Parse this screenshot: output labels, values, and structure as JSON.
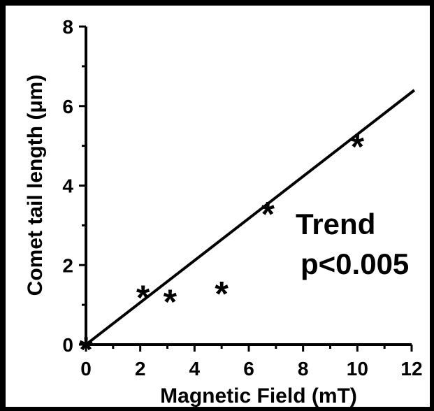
{
  "chart_data": {
    "type": "scatter",
    "title": "",
    "xlabel": "Magnetic Field (mT)",
    "ylabel": "Comet tail length (μm)",
    "xlim": [
      0,
      12
    ],
    "ylim": [
      0,
      8
    ],
    "x_ticks": [
      "0",
      "2",
      "4",
      "6",
      "8",
      "10",
      "12"
    ],
    "y_ticks": [
      "0",
      "2",
      "4",
      "6",
      "8"
    ],
    "grid": false,
    "marker_symbol": "*",
    "points": [
      {
        "x": 0,
        "y": 0
      },
      {
        "x": 2.1,
        "y": 1.3
      },
      {
        "x": 3.1,
        "y": 1.2
      },
      {
        "x": 5.0,
        "y": 1.4
      },
      {
        "x": 6.7,
        "y": 3.4
      },
      {
        "x": 10.0,
        "y": 5.1
      }
    ],
    "trend_line": {
      "x": [
        0,
        12.1
      ],
      "y": [
        0,
        6.4
      ]
    },
    "annotations": [
      "Trend",
      "p<0.005"
    ]
  }
}
